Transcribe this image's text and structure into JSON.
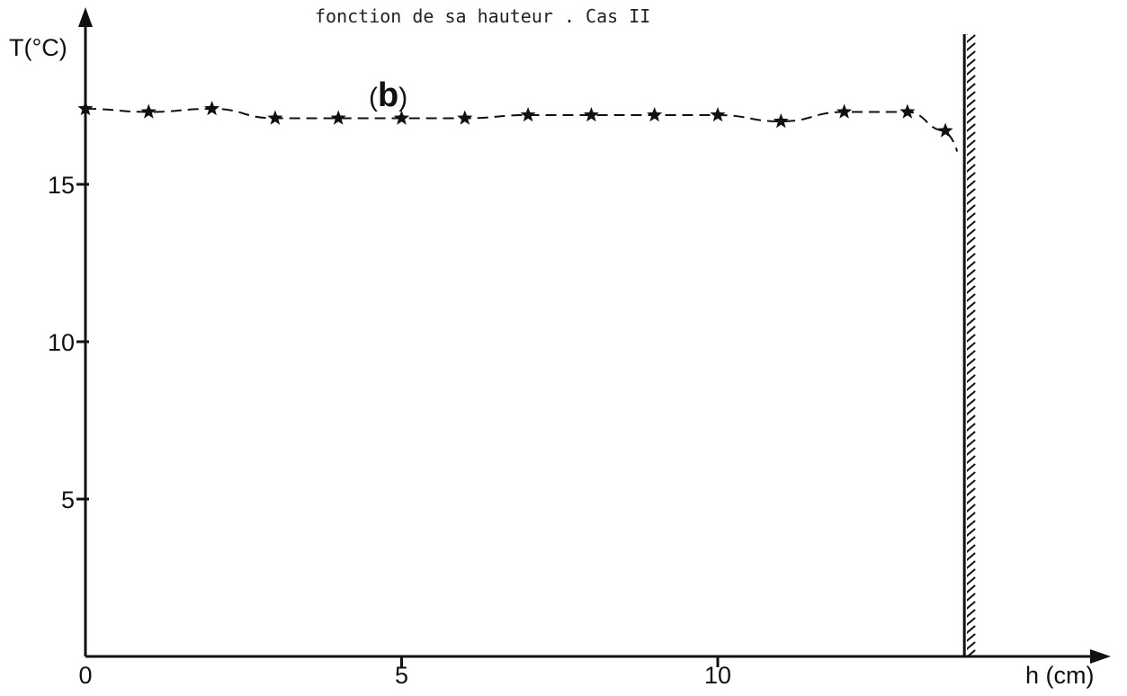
{
  "chart_data": {
    "type": "line",
    "title": "fonction de sa hauteur . Cas II",
    "xlabel": "h (cm)",
    "ylabel": "T(°C)",
    "xlim": [
      0,
      14
    ],
    "ylim": [
      0,
      20
    ],
    "xticks": [
      0,
      5,
      10
    ],
    "yticks": [
      5,
      10,
      15
    ],
    "grid": false,
    "wall_position_x": 13.9,
    "series": [
      {
        "name": "(b)",
        "marker": "star",
        "line_style": "dashed",
        "x": [
          0,
          1,
          2,
          3,
          4,
          5,
          6,
          7,
          8,
          9,
          10,
          11,
          12,
          13,
          13.6
        ],
        "y": [
          17.4,
          17.3,
          17.4,
          17.1,
          17.1,
          17.1,
          17.1,
          17.2,
          17.2,
          17.2,
          17.2,
          17.0,
          17.3,
          17.3,
          16.7
        ]
      }
    ]
  }
}
